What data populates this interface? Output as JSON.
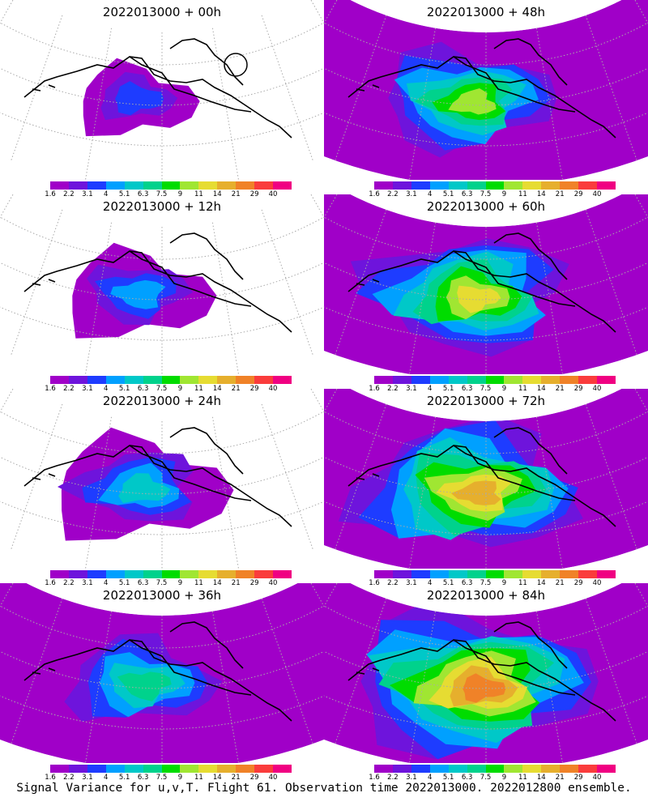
{
  "panels": [
    {
      "title": "2022013000 + 00h",
      "lead_hours": 0
    },
    {
      "title": "2022013000 + 48h",
      "lead_hours": 48
    },
    {
      "title": "2022013000 + 12h",
      "lead_hours": 12
    },
    {
      "title": "2022013000 + 60h",
      "lead_hours": 60
    },
    {
      "title": "2022013000 + 24h",
      "lead_hours": 24
    },
    {
      "title": "2022013000 + 72h",
      "lead_hours": 72
    },
    {
      "title": "2022013000 + 36h",
      "lead_hours": 36
    },
    {
      "title": "2022013000 + 84h",
      "lead_hours": 84
    }
  ],
  "colorbar": {
    "labels": [
      "1.6",
      "2.2",
      "3.1",
      "4",
      "5.1",
      "6.3",
      "7.5",
      "9",
      "11",
      "14",
      "21",
      "29",
      "40"
    ],
    "colors": [
      "#a000c8",
      "#6e14dc",
      "#1e3cff",
      "#00a0ff",
      "#00c8c8",
      "#00d28c",
      "#00dc00",
      "#a0e632",
      "#e6dc32",
      "#e6af2d",
      "#f08228",
      "#fa3c3c",
      "#f00082"
    ]
  },
  "caption": "Signal Variance for u,v,T. Flight 61. Observation time 2022013000. 2022012800 ensemble."
}
